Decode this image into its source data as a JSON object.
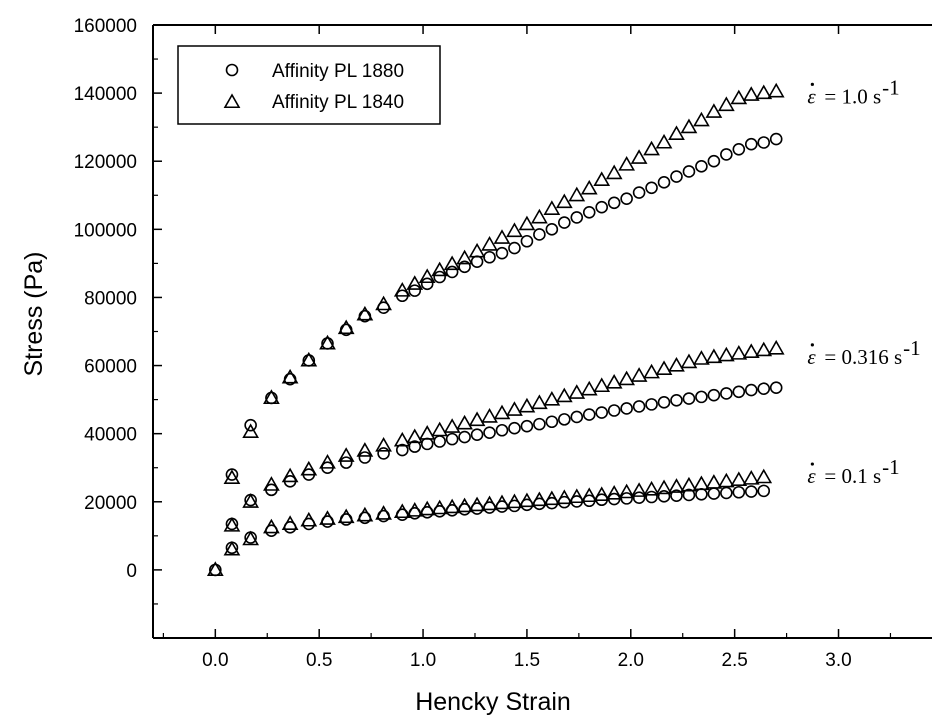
{
  "chart_data": {
    "type": "scatter",
    "title": "",
    "xlabel": "Hencky Strain",
    "ylabel": "Stress (Pa)",
    "xlim": [
      -0.3,
      3.45
    ],
    "ylim": [
      -20000,
      160000
    ],
    "xticks": [
      0.0,
      0.5,
      1.0,
      1.5,
      2.0,
      2.5,
      3.0
    ],
    "xtick_labels": [
      "0.0",
      "0.5",
      "1.0",
      "1.5",
      "2.0",
      "2.5",
      "3.0"
    ],
    "yticks": [
      0,
      20000,
      40000,
      60000,
      80000,
      100000,
      120000,
      140000,
      160000
    ],
    "ytick_labels": [
      "0",
      "20000",
      "40000",
      "60000",
      "80000",
      "100000",
      "120000",
      "140000",
      "160000"
    ],
    "grid": false,
    "legend_position": "top-left",
    "legend": [
      {
        "name": "Affinity PL 1880",
        "marker": "circle"
      },
      {
        "name": "Affinity PL 1840",
        "marker": "triangle"
      }
    ],
    "annotations": [
      {
        "rate": "= 1.0 s",
        "exp": "-1",
        "x": 2.85,
        "y": 137000
      },
      {
        "rate": "= 0.316 s",
        "exp": "-1",
        "x": 2.85,
        "y": 60500
      },
      {
        "rate": "= 0.1 s",
        "exp": "-1",
        "x": 2.85,
        "y": 25500
      }
    ],
    "series": [
      {
        "name": "Affinity PL 1880",
        "marker": "circle",
        "rate": "1.0",
        "x": [
          0,
          0.08,
          0.17,
          0.27,
          0.36,
          0.45,
          0.54,
          0.63,
          0.72,
          0.81,
          0.9,
          0.96,
          1.02,
          1.08,
          1.14,
          1.2,
          1.26,
          1.32,
          1.38,
          1.44,
          1.5,
          1.56,
          1.62,
          1.68,
          1.74,
          1.8,
          1.86,
          1.92,
          1.98,
          2.04,
          2.1,
          2.16,
          2.22,
          2.28,
          2.34,
          2.4,
          2.46,
          2.52,
          2.58,
          2.64,
          2.7
        ],
        "y": [
          0,
          28000,
          42500,
          50500,
          56000,
          61500,
          66500,
          70500,
          74500,
          77000,
          80500,
          82000,
          84000,
          86000,
          87500,
          89000,
          90500,
          91800,
          93000,
          94500,
          96500,
          98500,
          100000,
          102000,
          103500,
          105000,
          106500,
          107800,
          109000,
          110800,
          112200,
          113800,
          115500,
          117000,
          118500,
          120000,
          122000,
          123500,
          125000,
          125500,
          126500
        ]
      },
      {
        "name": "Affinity PL 1840",
        "marker": "triangle",
        "rate": "1.0",
        "x": [
          0,
          0.08,
          0.17,
          0.27,
          0.36,
          0.45,
          0.54,
          0.63,
          0.72,
          0.81,
          0.9,
          0.96,
          1.02,
          1.08,
          1.14,
          1.2,
          1.26,
          1.32,
          1.38,
          1.44,
          1.5,
          1.56,
          1.62,
          1.68,
          1.74,
          1.8,
          1.86,
          1.92,
          1.98,
          2.04,
          2.1,
          2.16,
          2.22,
          2.28,
          2.34,
          2.4,
          2.46,
          2.52,
          2.58,
          2.64,
          2.7
        ],
        "y": [
          0,
          27000,
          40500,
          50500,
          56500,
          61500,
          66500,
          71000,
          75000,
          78000,
          82000,
          84000,
          86000,
          88000,
          89800,
          91500,
          93500,
          95500,
          97500,
          99500,
          101500,
          103500,
          106000,
          108000,
          110000,
          112000,
          114500,
          116500,
          119000,
          121000,
          123500,
          125500,
          128000,
          130000,
          132000,
          134500,
          136500,
          138500,
          139500,
          140000,
          140500
        ]
      },
      {
        "name": "Affinity PL 1880",
        "marker": "circle",
        "rate": "0.316",
        "x": [
          0.08,
          0.17,
          0.27,
          0.36,
          0.45,
          0.54,
          0.63,
          0.72,
          0.81,
          0.9,
          0.96,
          1.02,
          1.08,
          1.14,
          1.2,
          1.26,
          1.32,
          1.38,
          1.44,
          1.5,
          1.56,
          1.62,
          1.68,
          1.74,
          1.8,
          1.86,
          1.92,
          1.98,
          2.04,
          2.1,
          2.16,
          2.22,
          2.28,
          2.34,
          2.4,
          2.46,
          2.52,
          2.58,
          2.64,
          2.7
        ],
        "y": [
          13500,
          20500,
          23500,
          26000,
          28000,
          30000,
          31500,
          33000,
          34200,
          35200,
          36200,
          37000,
          37700,
          38400,
          39000,
          39700,
          40300,
          41000,
          41600,
          42200,
          42800,
          43500,
          44200,
          44900,
          45600,
          46200,
          46800,
          47400,
          48000,
          48600,
          49200,
          49800,
          50300,
          50800,
          51300,
          51800,
          52300,
          52800,
          53200,
          53500
        ]
      },
      {
        "name": "Affinity PL 1840",
        "marker": "triangle",
        "rate": "0.316",
        "x": [
          0.08,
          0.17,
          0.27,
          0.36,
          0.45,
          0.54,
          0.63,
          0.72,
          0.81,
          0.9,
          0.96,
          1.02,
          1.08,
          1.14,
          1.2,
          1.26,
          1.32,
          1.38,
          1.44,
          1.5,
          1.56,
          1.62,
          1.68,
          1.74,
          1.8,
          1.86,
          1.92,
          1.98,
          2.04,
          2.1,
          2.16,
          2.22,
          2.28,
          2.34,
          2.4,
          2.46,
          2.52,
          2.58,
          2.64,
          2.7
        ],
        "y": [
          13000,
          20000,
          25000,
          27500,
          29500,
          31500,
          33500,
          35000,
          36500,
          38000,
          39000,
          40000,
          41000,
          42000,
          43000,
          44000,
          45000,
          46000,
          47000,
          48000,
          49000,
          50000,
          51000,
          52000,
          53000,
          54000,
          55000,
          56000,
          57000,
          58000,
          59000,
          60000,
          61000,
          62000,
          62500,
          63000,
          63500,
          64000,
          64500,
          65000
        ]
      },
      {
        "name": "Affinity PL 1880",
        "marker": "circle",
        "rate": "0.1",
        "x": [
          0.08,
          0.17,
          0.27,
          0.36,
          0.45,
          0.54,
          0.63,
          0.72,
          0.81,
          0.9,
          0.96,
          1.02,
          1.08,
          1.14,
          1.2,
          1.26,
          1.32,
          1.38,
          1.44,
          1.5,
          1.56,
          1.62,
          1.68,
          1.74,
          1.8,
          1.86,
          1.92,
          1.98,
          2.04,
          2.1,
          2.16,
          2.22,
          2.28,
          2.34,
          2.4,
          2.46,
          2.52,
          2.58,
          2.64
        ],
        "y": [
          6500,
          9500,
          11500,
          12500,
          13500,
          14200,
          14800,
          15300,
          15800,
          16200,
          16600,
          16900,
          17200,
          17500,
          17800,
          18000,
          18300,
          18600,
          18800,
          19100,
          19400,
          19600,
          19900,
          20100,
          20300,
          20600,
          20800,
          21000,
          21200,
          21400,
          21600,
          21800,
          22000,
          22200,
          22400,
          22600,
          22800,
          23000,
          23200
        ]
      },
      {
        "name": "Affinity PL 1840",
        "marker": "triangle",
        "rate": "0.1",
        "x": [
          0.08,
          0.17,
          0.27,
          0.36,
          0.45,
          0.54,
          0.63,
          0.72,
          0.81,
          0.9,
          0.96,
          1.02,
          1.08,
          1.14,
          1.2,
          1.26,
          1.32,
          1.38,
          1.44,
          1.5,
          1.56,
          1.62,
          1.68,
          1.74,
          1.8,
          1.86,
          1.92,
          1.98,
          2.04,
          2.1,
          2.16,
          2.22,
          2.28,
          2.34,
          2.4,
          2.46,
          2.52,
          2.58,
          2.64
        ],
        "y": [
          6000,
          9000,
          12500,
          13500,
          14500,
          15000,
          15500,
          16000,
          16500,
          17000,
          17400,
          17800,
          18100,
          18400,
          18700,
          19000,
          19300,
          19600,
          19900,
          20200,
          20500,
          20800,
          21100,
          21400,
          21700,
          22000,
          22400,
          22800,
          23200,
          23600,
          24000,
          24400,
          24800,
          25200,
          25600,
          26000,
          26400,
          26800,
          27200
        ]
      }
    ]
  }
}
